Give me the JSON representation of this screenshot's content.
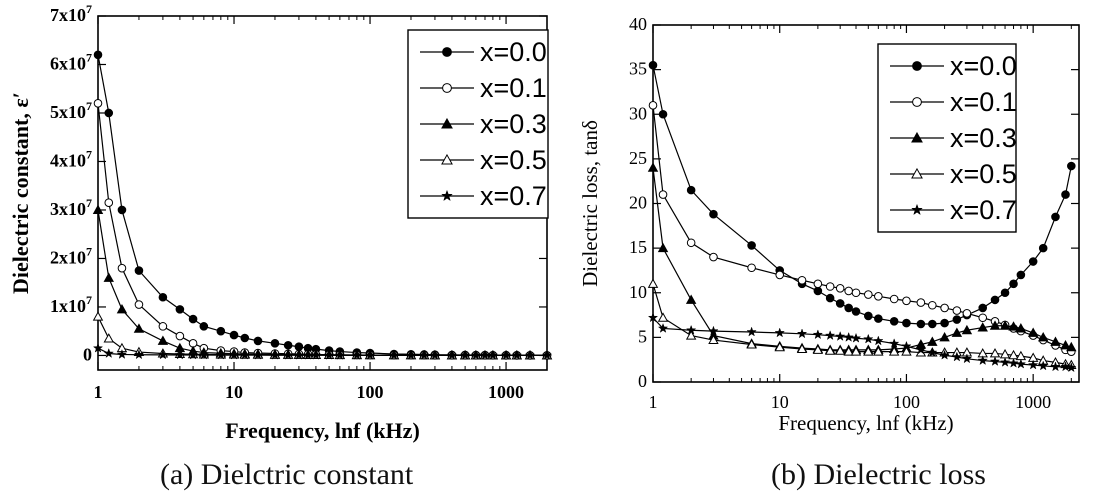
{
  "captions": {
    "a": "(a) Dielctric constant",
    "b": "(b) Dielectric loss"
  },
  "chart_data": [
    {
      "type": "line",
      "id": "a",
      "xlabel": "Frequency, lnf (kHz)",
      "ylabel": "Dielectric constant, ε′",
      "xscale": "log",
      "xlim": [
        1,
        2000
      ],
      "ylim": [
        -3000000,
        70000000
      ],
      "xticks": [
        1,
        10,
        100,
        1000
      ],
      "xtick_labels": [
        "1",
        "10",
        "100",
        "1000"
      ],
      "yticks": [
        0,
        10000000,
        20000000,
        30000000,
        40000000,
        50000000,
        60000000,
        70000000
      ],
      "ytick_labels": [
        {
          "base": "0",
          "exp": ""
        },
        {
          "base": "1x10",
          "exp": "7"
        },
        {
          "base": "2x10",
          "exp": "7"
        },
        {
          "base": "3x10",
          "exp": "7"
        },
        {
          "base": "4x10",
          "exp": "7"
        },
        {
          "base": "5x10",
          "exp": "7"
        },
        {
          "base": "6x10",
          "exp": "7"
        },
        {
          "base": "7x10",
          "exp": "7"
        }
      ],
      "legend_position": "top-right",
      "x": [
        1,
        1.2,
        1.5,
        2,
        3,
        4,
        5,
        6,
        8,
        10,
        12,
        15,
        20,
        25,
        30,
        35,
        40,
        50,
        60,
        80,
        100,
        150,
        200,
        250,
        300,
        400,
        500,
        600,
        700,
        800,
        1000,
        1200,
        1500,
        2000
      ],
      "series": [
        {
          "name": "x=0.0",
          "marker": "circle-filled",
          "values": [
            62000000,
            50000000,
            30000000,
            17500000,
            12000000,
            9500000,
            7500000,
            6000000,
            5000000,
            4200000,
            3600000,
            3000000,
            2500000,
            2100000,
            1800000,
            1500000,
            1300000,
            1000000,
            800000,
            600000,
            500000,
            300000,
            250000,
            200000,
            150000,
            120000,
            100000,
            90000,
            80000,
            70000,
            60000,
            50000,
            40000,
            30000
          ]
        },
        {
          "name": "x=0.1",
          "marker": "circle-open",
          "values": [
            52000000,
            31500000,
            18000000,
            10500000,
            6000000,
            4000000,
            2500000,
            1500000,
            1000000,
            800000,
            600000,
            500000,
            400000,
            350000,
            300000,
            250000,
            200000,
            150000,
            120000,
            100000,
            80000,
            60000,
            50000,
            40000,
            30000,
            25000,
            20000,
            20000,
            15000,
            15000,
            10000,
            10000,
            10000,
            10000
          ]
        },
        {
          "name": "x=0.3",
          "marker": "triangle-filled",
          "values": [
            30000000,
            16000000,
            9500000,
            5500000,
            3000000,
            1500000,
            900000,
            600000,
            450000,
            350000,
            300000,
            250000,
            200000,
            170000,
            150000,
            130000,
            120000,
            100000,
            90000,
            70000,
            60000,
            50000,
            40000,
            35000,
            30000,
            25000,
            20000,
            20000,
            15000,
            15000,
            10000,
            10000,
            10000,
            10000
          ]
        },
        {
          "name": "x=0.5",
          "marker": "triangle-open",
          "values": [
            8000000,
            3500000,
            1500000,
            700000,
            400000,
            300000,
            250000,
            200000,
            180000,
            160000,
            150000,
            140000,
            130000,
            120000,
            110000,
            100000,
            90000,
            80000,
            70000,
            60000,
            50000,
            40000,
            35000,
            30000,
            25000,
            20000,
            20000,
            15000,
            15000,
            15000,
            10000,
            10000,
            10000,
            10000
          ]
        },
        {
          "name": "x=0.7",
          "marker": "star-filled",
          "values": [
            1500000,
            400000,
            200000,
            150000,
            120000,
            100000,
            90000,
            80000,
            70000,
            60000,
            55000,
            50000,
            45000,
            40000,
            35000,
            30000,
            30000,
            25000,
            20000,
            20000,
            15000,
            15000,
            10000,
            10000,
            10000,
            10000,
            10000,
            10000,
            10000,
            10000,
            10000,
            10000,
            10000,
            10000
          ]
        }
      ]
    },
    {
      "type": "line",
      "id": "b",
      "xlabel": "Frequency, lnf (kHz)",
      "ylabel": "Dielectric loss, tanδ",
      "xscale": "log",
      "xlim": [
        1,
        2300
      ],
      "ylim": [
        0,
        40
      ],
      "xticks": [
        1,
        10,
        100,
        1000
      ],
      "xtick_labels": [
        "1",
        "10",
        "100",
        "1000"
      ],
      "yticks": [
        0,
        5,
        10,
        15,
        20,
        25,
        30,
        35,
        40
      ],
      "ytick_labels": [
        "0",
        "5",
        "10",
        "15",
        "20",
        "25",
        "30",
        "35",
        "40"
      ],
      "legend_position": "top-right",
      "x": [
        1,
        1.2,
        2,
        3,
        6,
        10,
        15,
        20,
        25,
        30,
        35,
        40,
        50,
        60,
        80,
        100,
        130,
        160,
        200,
        250,
        300,
        400,
        500,
        600,
        700,
        800,
        1000,
        1200,
        1500,
        1800,
        2000
      ],
      "series": [
        {
          "name": "x=0.0",
          "marker": "circle-filled",
          "values": [
            35.5,
            30,
            21.5,
            18.8,
            15.3,
            12.5,
            11,
            10.2,
            9.4,
            8.8,
            8.3,
            7.9,
            7.4,
            7.1,
            6.8,
            6.6,
            6.5,
            6.5,
            6.6,
            7,
            7.5,
            8.3,
            9.2,
            10,
            11,
            12,
            13.5,
            15,
            18.5,
            21,
            24.2
          ]
        },
        {
          "name": "x=0.1",
          "marker": "circle-open",
          "values": [
            31,
            21,
            15.6,
            14,
            12.8,
            12,
            11.4,
            11,
            10.7,
            10.5,
            10.2,
            10,
            9.8,
            9.6,
            9.3,
            9.1,
            8.9,
            8.6,
            8.3,
            8,
            7.7,
            7.2,
            6.8,
            6.4,
            6,
            5.7,
            5.2,
            4.7,
            4.1,
            3.6,
            3.4
          ]
        },
        {
          "name": "x=0.3",
          "marker": "triangle-filled",
          "values": [
            24,
            15,
            9.2,
            5.2,
            4.3,
            4,
            3.8,
            3.7,
            3.6,
            3.6,
            3.6,
            3.6,
            3.6,
            3.6,
            3.7,
            3.8,
            4.2,
            4.5,
            5,
            5.5,
            5.8,
            6.1,
            6.3,
            6.3,
            6.2,
            6,
            5.5,
            5,
            4.5,
            4.1,
            3.9
          ]
        },
        {
          "name": "x=0.5",
          "marker": "triangle-open",
          "values": [
            11,
            7.2,
            5.2,
            4.7,
            4.2,
            3.9,
            3.7,
            3.6,
            3.5,
            3.5,
            3.4,
            3.4,
            3.4,
            3.4,
            3.4,
            3.4,
            3.3,
            3.3,
            3.3,
            3.3,
            3.3,
            3.2,
            3.2,
            3.1,
            3,
            2.9,
            2.7,
            2.4,
            2.2,
            2,
            1.9
          ]
        },
        {
          "name": "x=0.7",
          "marker": "star-filled",
          "values": [
            7.2,
            6,
            5.8,
            5.7,
            5.6,
            5.5,
            5.4,
            5.3,
            5.2,
            5.1,
            5,
            4.9,
            4.8,
            4.6,
            4.3,
            4,
            3.6,
            3.3,
            3,
            2.8,
            2.6,
            2.4,
            2.3,
            2.2,
            2.1,
            2,
            1.9,
            1.8,
            1.7,
            1.7,
            1.6
          ]
        }
      ]
    }
  ]
}
